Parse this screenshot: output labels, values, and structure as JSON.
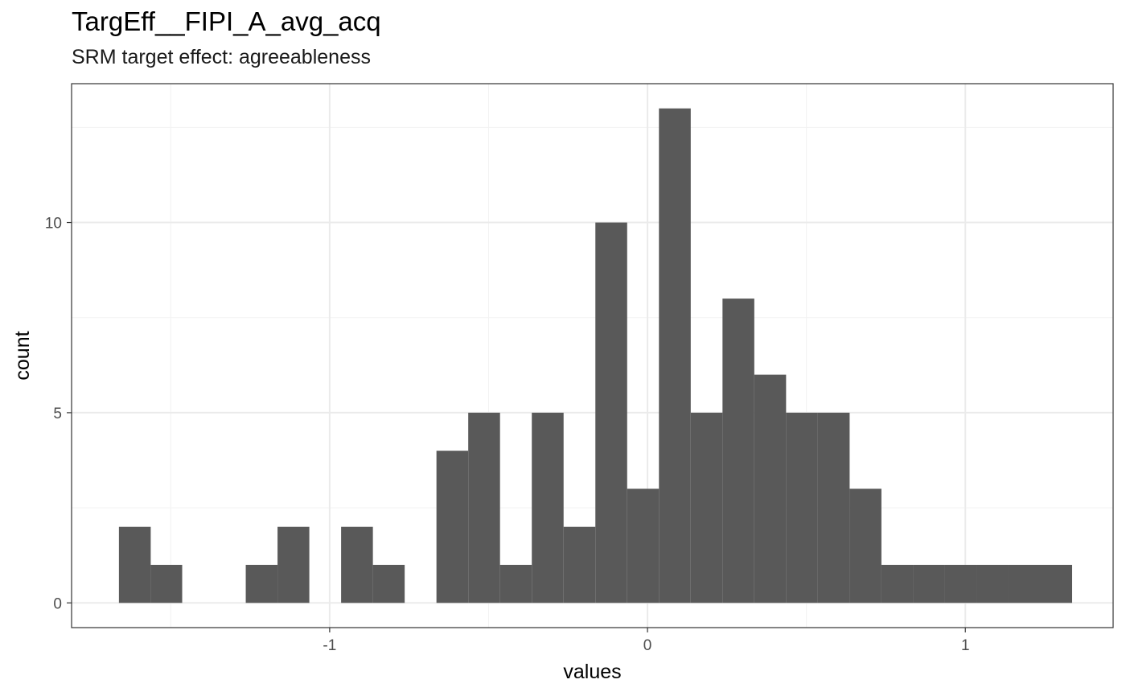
{
  "chart_data": {
    "type": "bar",
    "title": "TargEff__FIPI_A_avg_acq",
    "subtitle": "SRM target effect: agreeableness",
    "xlabel": "values",
    "ylabel": "count",
    "xlim": [
      -1.812,
      1.465
    ],
    "ylim": [
      -0.65,
      13.65
    ],
    "x_ticks": [
      -1,
      0,
      1
    ],
    "x_tick_labels": [
      "-1",
      "0",
      "1"
    ],
    "y_ticks": [
      0,
      5,
      10
    ],
    "y_tick_labels": [
      "0",
      "5",
      "10"
    ],
    "grid": true,
    "bins": [
      {
        "x0": -1.663,
        "x1": -1.563,
        "count": 2
      },
      {
        "x0": -1.563,
        "x1": -1.464,
        "count": 1
      },
      {
        "x0": -1.464,
        "x1": -1.364,
        "count": 0
      },
      {
        "x0": -1.364,
        "x1": -1.264,
        "count": 0
      },
      {
        "x0": -1.264,
        "x1": -1.164,
        "count": 1
      },
      {
        "x0": -1.164,
        "x1": -1.064,
        "count": 2
      },
      {
        "x0": -1.064,
        "x1": -0.964,
        "count": 0
      },
      {
        "x0": -0.964,
        "x1": -0.864,
        "count": 2
      },
      {
        "x0": -0.864,
        "x1": -0.764,
        "count": 1
      },
      {
        "x0": -0.764,
        "x1": -0.664,
        "count": 0
      },
      {
        "x0": -0.664,
        "x1": -0.564,
        "count": 4
      },
      {
        "x0": -0.564,
        "x1": -0.464,
        "count": 5
      },
      {
        "x0": -0.464,
        "x1": -0.364,
        "count": 1
      },
      {
        "x0": -0.364,
        "x1": -0.264,
        "count": 5
      },
      {
        "x0": -0.264,
        "x1": -0.164,
        "count": 2
      },
      {
        "x0": -0.164,
        "x1": -0.064,
        "count": 10
      },
      {
        "x0": -0.064,
        "x1": 0.036,
        "count": 3
      },
      {
        "x0": 0.036,
        "x1": 0.136,
        "count": 13
      },
      {
        "x0": 0.136,
        "x1": 0.236,
        "count": 5
      },
      {
        "x0": 0.236,
        "x1": 0.336,
        "count": 8
      },
      {
        "x0": 0.336,
        "x1": 0.436,
        "count": 6
      },
      {
        "x0": 0.436,
        "x1": 0.536,
        "count": 5
      },
      {
        "x0": 0.536,
        "x1": 0.636,
        "count": 5
      },
      {
        "x0": 0.636,
        "x1": 0.736,
        "count": 3
      },
      {
        "x0": 0.736,
        "x1": 0.836,
        "count": 1
      },
      {
        "x0": 0.836,
        "x1": 0.936,
        "count": 1
      },
      {
        "x0": 0.936,
        "x1": 1.036,
        "count": 1
      },
      {
        "x0": 1.036,
        "x1": 1.136,
        "count": 1
      },
      {
        "x0": 1.136,
        "x1": 1.236,
        "count": 1
      },
      {
        "x0": 1.236,
        "x1": 1.336,
        "count": 1
      }
    ],
    "colors": {
      "bar": "#595959",
      "panel_background": "#ffffff",
      "grid_major": "#ebebeb",
      "grid_minor": "#f2f2f2",
      "panel_border": "#333333",
      "tick": "#333333"
    }
  }
}
